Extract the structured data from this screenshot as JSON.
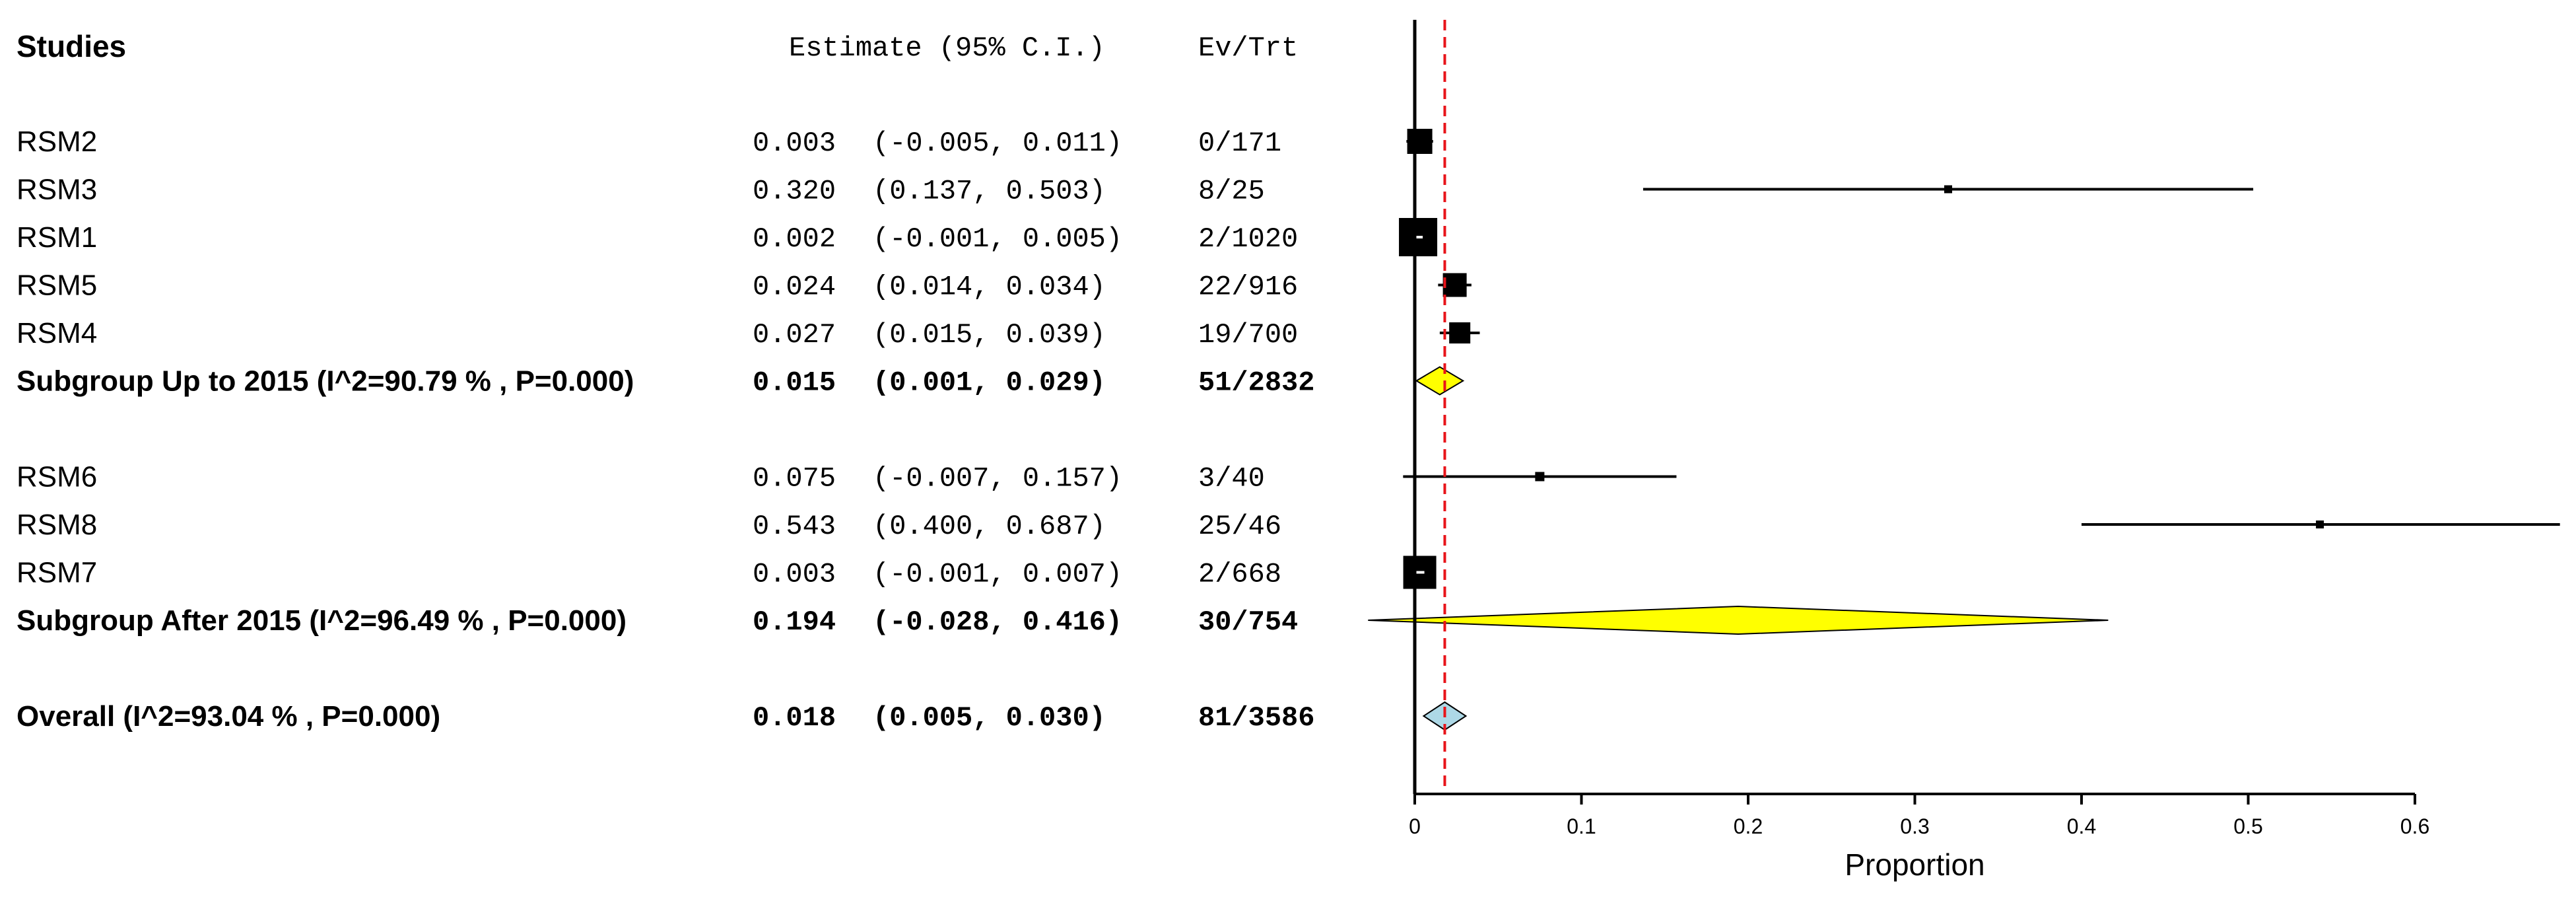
{
  "headers": {
    "studies": "Studies",
    "estimate": "Estimate (95% C.I.)",
    "evtrt": "Ev/Trt"
  },
  "chart_data": {
    "type": "forest",
    "xlabel": "Proportion",
    "xlim": [
      0,
      0.6
    ],
    "xticks": [
      "0",
      "0.1",
      "0.2",
      "0.3",
      "0.4",
      "0.5",
      "0.6"
    ],
    "pooled_reference_line": 0.018,
    "rows": [
      {
        "kind": "study",
        "name": "RSM2",
        "est_text": "0.003",
        "ci_text": "(-0.005, 0.011)",
        "evtrt": "0/171",
        "est": 0.003,
        "lo": -0.005,
        "hi": 0.011,
        "marker_size": 38
      },
      {
        "kind": "study",
        "name": "RSM3",
        "est_text": "0.320",
        "ci_text": "(0.137, 0.503)",
        "evtrt": "8/25",
        "est": 0.32,
        "lo": 0.137,
        "hi": 0.503,
        "marker_size": 12
      },
      {
        "kind": "study",
        "name": "RSM1",
        "est_text": "0.002",
        "ci_text": "(-0.001, 0.005)",
        "evtrt": "2/1020",
        "est": 0.002,
        "lo": -0.001,
        "hi": 0.005,
        "marker_size": 58
      },
      {
        "kind": "study",
        "name": "RSM5",
        "est_text": "0.024",
        "ci_text": "(0.014, 0.034)",
        "evtrt": "22/916",
        "est": 0.024,
        "lo": 0.014,
        "hi": 0.034,
        "marker_size": 36
      },
      {
        "kind": "study",
        "name": "RSM4",
        "est_text": "0.027",
        "ci_text": "(0.015, 0.039)",
        "evtrt": "19/700",
        "est": 0.027,
        "lo": 0.015,
        "hi": 0.039,
        "marker_size": 32
      },
      {
        "kind": "subgroup",
        "name": "Subgroup Up to 2015 (I^2=90.79 % , P=0.000)",
        "est_text": "0.015",
        "ci_text": "(0.001, 0.029)",
        "evtrt": "51/2832",
        "est": 0.015,
        "lo": 0.001,
        "hi": 0.029,
        "color": "#ffff00"
      },
      {
        "kind": "gap"
      },
      {
        "kind": "study",
        "name": "RSM6",
        "est_text": "0.075",
        "ci_text": "(-0.007, 0.157)",
        "evtrt": "3/40",
        "est": 0.075,
        "lo": -0.007,
        "hi": 0.157,
        "marker_size": 14
      },
      {
        "kind": "study",
        "name": "RSM8",
        "est_text": "0.543",
        "ci_text": "(0.400, 0.687)",
        "evtrt": "25/46",
        "est": 0.543,
        "lo": 0.4,
        "hi": 0.687,
        "marker_size": 12
      },
      {
        "kind": "study",
        "name": "RSM7",
        "est_text": "0.003",
        "ci_text": "(-0.001, 0.007)",
        "evtrt": "2/668",
        "est": 0.003,
        "lo": -0.001,
        "hi": 0.007,
        "marker_size": 50
      },
      {
        "kind": "subgroup",
        "name": "Subgroup After 2015 (I^2=96.49 % , P=0.000)",
        "est_text": "0.194",
        "ci_text": "(-0.028, 0.416)",
        "evtrt": "30/754",
        "est": 0.194,
        "lo": -0.028,
        "hi": 0.416,
        "color": "#ffff00"
      },
      {
        "kind": "gap"
      },
      {
        "kind": "overall",
        "name": "Overall (I^2=93.04 % , P=0.000)",
        "est_text": "0.018",
        "ci_text": "(0.005, 0.030)",
        "evtrt": "81/3586",
        "est": 0.018,
        "lo": 0.005,
        "hi": 0.03,
        "color": "#add8e6"
      }
    ]
  }
}
